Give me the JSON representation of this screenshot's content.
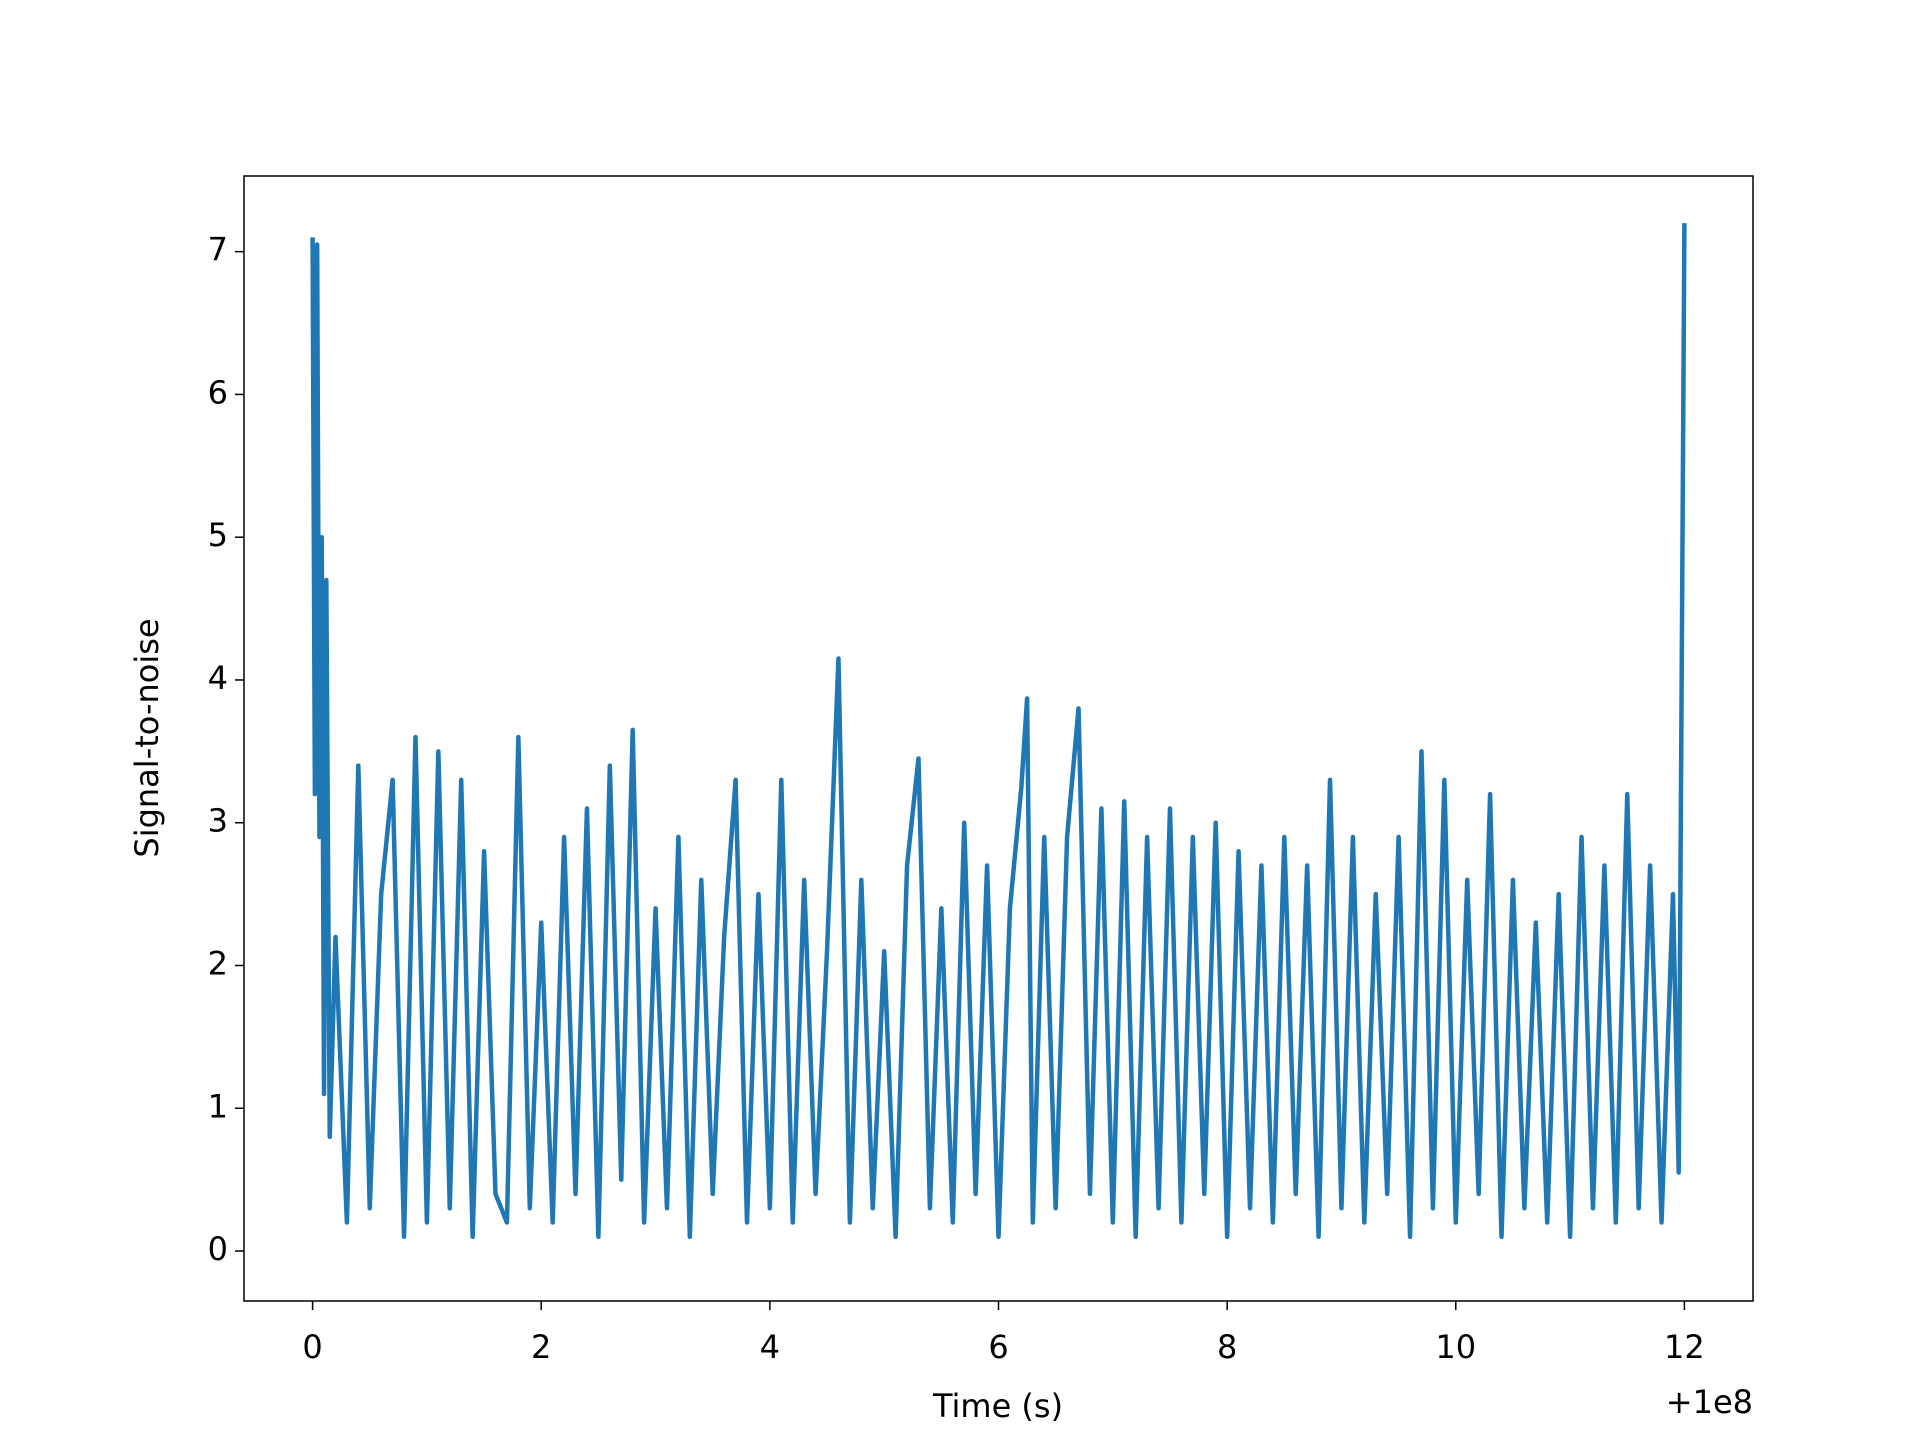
{
  "chart_data": {
    "type": "line",
    "xlabel": "Time (s)",
    "ylabel": "Signal-to-noise",
    "x_offset_label": "+1e8",
    "xlim": [
      -0.6,
      12.6
    ],
    "ylim": [
      -0.35,
      7.53
    ],
    "xticks": [
      0,
      2,
      4,
      6,
      8,
      10,
      12
    ],
    "yticks": [
      0,
      1,
      2,
      3,
      4,
      5,
      6,
      7
    ],
    "grid": false,
    "series": [
      {
        "name": "Signal-to-noise",
        "color": "#1f77b4",
        "x": [
          0,
          0.02,
          0.04,
          0.06,
          0.08,
          0.1,
          0.12,
          0.15,
          0.2,
          0.3,
          0.4,
          0.5,
          0.6,
          0.7,
          0.8,
          0.9,
          1.0,
          1.1,
          1.2,
          1.3,
          1.4,
          1.5,
          1.6,
          1.7,
          1.8,
          1.9,
          2.0,
          2.1,
          2.2,
          2.3,
          2.4,
          2.5,
          2.6,
          2.7,
          2.8,
          2.9,
          3.0,
          3.1,
          3.2,
          3.3,
          3.4,
          3.5,
          3.6,
          3.7,
          3.8,
          3.9,
          4.0,
          4.1,
          4.2,
          4.3,
          4.4,
          4.5,
          4.6,
          4.7,
          4.8,
          4.9,
          5.0,
          5.1,
          5.2,
          5.3,
          5.4,
          5.5,
          5.6,
          5.7,
          5.8,
          5.9,
          6.0,
          6.1,
          6.2,
          6.25,
          6.3,
          6.4,
          6.5,
          6.6,
          6.7,
          6.8,
          6.9,
          7.0,
          7.1,
          7.2,
          7.3,
          7.4,
          7.5,
          7.6,
          7.7,
          7.8,
          7.9,
          8.0,
          8.1,
          8.2,
          8.3,
          8.4,
          8.5,
          8.6,
          8.7,
          8.8,
          8.9,
          9.0,
          9.1,
          9.2,
          9.3,
          9.4,
          9.5,
          9.6,
          9.7,
          9.8,
          9.9,
          10.0,
          10.1,
          10.2,
          10.3,
          10.4,
          10.5,
          10.6,
          10.7,
          10.8,
          10.9,
          11.0,
          11.1,
          11.2,
          11.3,
          11.4,
          11.5,
          11.6,
          11.7,
          11.8,
          11.9,
          11.95,
          12.0
        ],
        "values": [
          7.1,
          3.2,
          7.05,
          2.9,
          5.0,
          1.1,
          4.7,
          0.8,
          2.2,
          0.2,
          3.4,
          0.3,
          2.5,
          3.3,
          0.1,
          3.6,
          0.2,
          3.5,
          0.3,
          3.3,
          0.1,
          2.8,
          0.4,
          0.2,
          3.6,
          0.3,
          2.3,
          0.2,
          2.9,
          0.4,
          3.1,
          0.1,
          3.4,
          0.5,
          3.65,
          0.2,
          2.4,
          0.3,
          2.9,
          0.1,
          2.6,
          0.4,
          2.2,
          3.3,
          0.2,
          2.5,
          0.3,
          3.3,
          0.2,
          2.6,
          0.4,
          2.1,
          4.15,
          0.2,
          2.6,
          0.3,
          2.1,
          0.1,
          2.7,
          3.45,
          0.3,
          2.4,
          0.2,
          3.0,
          0.4,
          2.7,
          0.1,
          2.4,
          3.25,
          3.87,
          0.2,
          2.9,
          0.3,
          2.9,
          3.8,
          0.4,
          3.1,
          0.2,
          3.15,
          0.1,
          2.9,
          0.3,
          3.1,
          0.2,
          2.9,
          0.4,
          3.0,
          0.1,
          2.8,
          0.3,
          2.7,
          0.2,
          2.9,
          0.4,
          2.7,
          0.1,
          3.3,
          0.3,
          2.9,
          0.2,
          2.5,
          0.4,
          2.9,
          0.1,
          3.5,
          0.3,
          3.3,
          0.2,
          2.6,
          0.4,
          3.2,
          0.1,
          2.6,
          0.3,
          2.3,
          0.2,
          2.5,
          0.1,
          2.9,
          0.3,
          2.7,
          0.2,
          3.2,
          0.3,
          2.7,
          0.2,
          2.5,
          0.55,
          7.2
        ]
      }
    ]
  }
}
